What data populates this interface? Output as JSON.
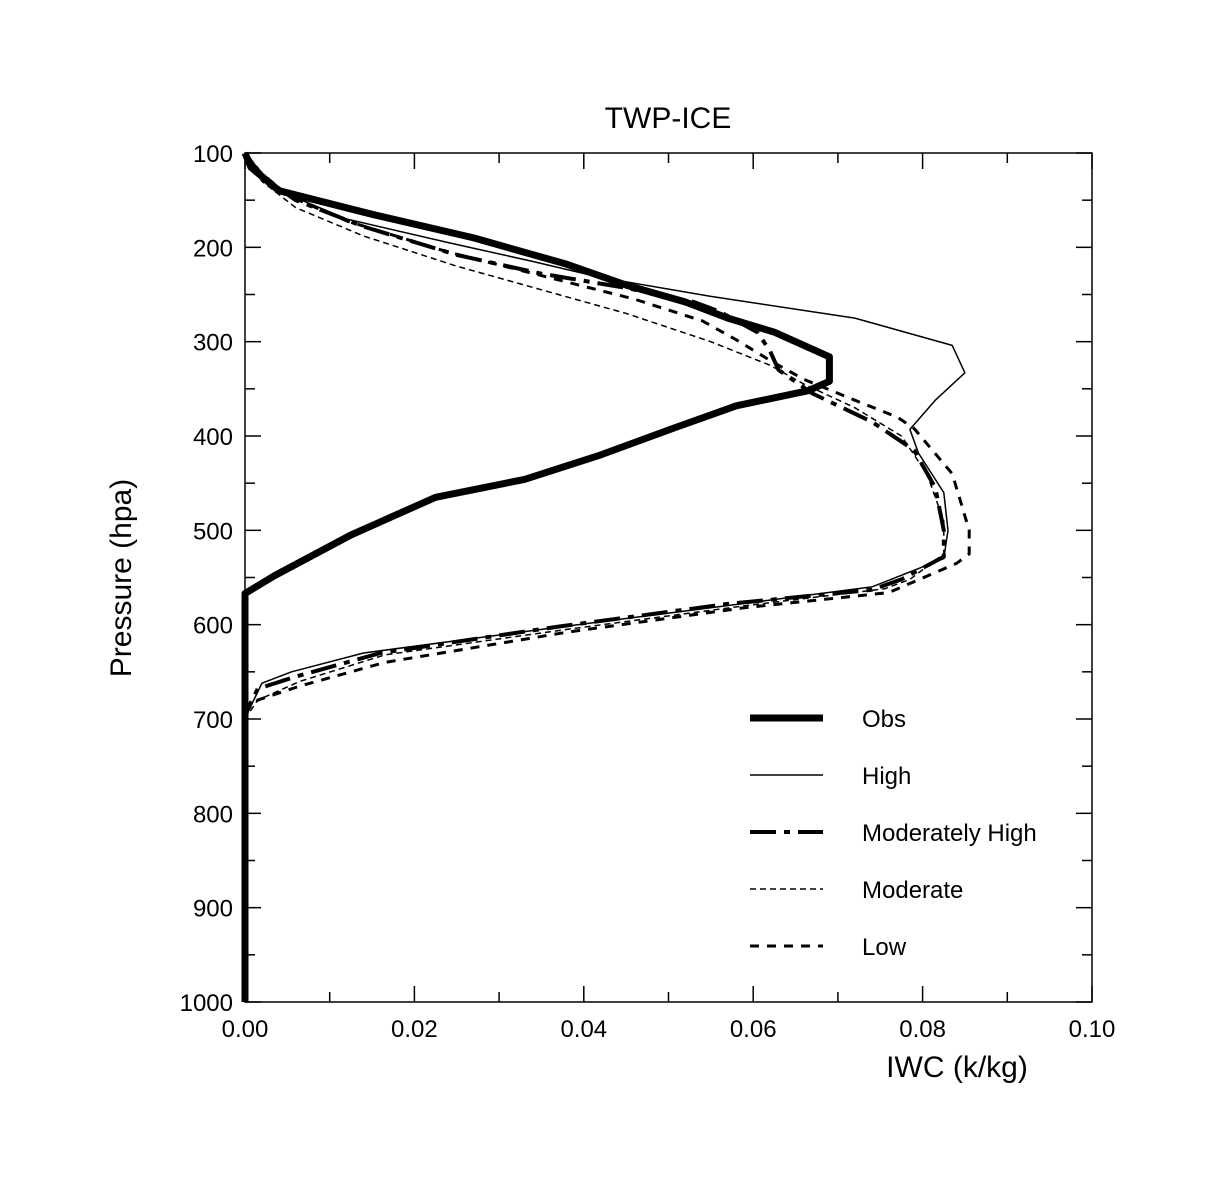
{
  "chart_data": {
    "type": "line",
    "title": "TWP-ICE",
    "xlabel": "IWC  (k/kg)",
    "ylabel": "Pressure (hpa)",
    "xlim": [
      0.0,
      0.1
    ],
    "ylim": [
      1000,
      100
    ],
    "y_inverted": true,
    "grid": false,
    "legend_position": "bottom-right",
    "x_ticks": [
      0.0,
      0.02,
      0.04,
      0.06,
      0.08,
      0.1
    ],
    "x_tick_labels": [
      "0.00",
      "0.02",
      "0.04",
      "0.06",
      "0.08",
      "0.10"
    ],
    "y_ticks": [
      100,
      200,
      300,
      400,
      500,
      600,
      700,
      800,
      900,
      1000
    ],
    "y_tick_labels": [
      "100",
      "200",
      "300",
      "400",
      "500",
      "600",
      "700",
      "800",
      "900",
      "1000"
    ],
    "series": [
      {
        "name": "Obs",
        "style": "thick-solid",
        "x": [
          0.0,
          0.0007,
          0.004,
          0.015,
          0.027,
          0.038,
          0.045,
          0.052,
          0.057,
          0.0625,
          0.065,
          0.069,
          0.069,
          0.0665,
          0.058,
          0.0505,
          0.042,
          0.033,
          0.0225,
          0.0125,
          0.0035,
          0.0,
          0.0,
          0.0,
          0.0
        ],
        "y": [
          100,
          115,
          140,
          165,
          190,
          218,
          240,
          258,
          275,
          290,
          300,
          316,
          342,
          352,
          368,
          392,
          420,
          446,
          465,
          505,
          548,
          567,
          590,
          700,
          1000
        ]
      },
      {
        "name": "High",
        "style": "thin-solid",
        "x": [
          0.0,
          0.001,
          0.004,
          0.012,
          0.024,
          0.034,
          0.042,
          0.055,
          0.072,
          0.0835,
          0.085,
          0.0815,
          0.0785,
          0.0795,
          0.0825,
          0.083,
          0.0825,
          0.074,
          0.055,
          0.035,
          0.014,
          0.0055,
          0.002,
          0.0005,
          0.0,
          0.0
        ],
        "y": [
          100,
          115,
          140,
          170,
          195,
          215,
          232,
          252,
          275,
          304,
          333,
          362,
          393,
          418,
          460,
          500,
          530,
          560,
          582,
          605,
          630,
          650,
          662,
          690,
          700,
          1000
        ]
      },
      {
        "name": "Moderately High",
        "style": "dash-dot",
        "x": [
          0.0,
          0.002,
          0.006,
          0.014,
          0.025,
          0.035,
          0.045,
          0.053,
          0.056,
          0.0605,
          0.062,
          0.063,
          0.067,
          0.074,
          0.079,
          0.0815,
          0.0825,
          0.0825,
          0.0775,
          0.074,
          0.057,
          0.037,
          0.016,
          0.006,
          0.0015,
          0.0003,
          0.0
        ],
        "y": [
          100,
          125,
          150,
          178,
          208,
          228,
          243,
          258,
          268,
          290,
          310,
          330,
          355,
          385,
          415,
          455,
          500,
          528,
          552,
          563,
          578,
          602,
          630,
          655,
          668,
          690,
          700
        ]
      },
      {
        "name": "Moderate",
        "style": "thin-dashed",
        "x": [
          0.0,
          0.002,
          0.006,
          0.014,
          0.025,
          0.035,
          0.045,
          0.055,
          0.062,
          0.066,
          0.072,
          0.0775,
          0.0805,
          0.0825,
          0.0825,
          0.0785,
          0.0755,
          0.059,
          0.038,
          0.0165,
          0.0065,
          0.0015,
          0.0
        ],
        "y": [
          100,
          130,
          158,
          188,
          220,
          245,
          270,
          300,
          325,
          345,
          370,
          400,
          440,
          490,
          525,
          552,
          562,
          580,
          605,
          632,
          660,
          680,
          700
        ]
      },
      {
        "name": "Low",
        "style": "dashed",
        "x": [
          0.0,
          0.0018,
          0.005,
          0.012,
          0.024,
          0.035,
          0.046,
          0.054,
          0.058,
          0.062,
          0.066,
          0.072,
          0.077,
          0.079,
          0.0835,
          0.0855,
          0.0855,
          0.084,
          0.076,
          0.059,
          0.038,
          0.0165,
          0.0065,
          0.0015,
          0.0003,
          0.0
        ],
        "y": [
          100,
          120,
          145,
          172,
          205,
          230,
          255,
          278,
          298,
          320,
          340,
          362,
          380,
          392,
          440,
          500,
          525,
          535,
          566,
          582,
          608,
          640,
          665,
          680,
          690,
          700
        ]
      }
    ]
  }
}
